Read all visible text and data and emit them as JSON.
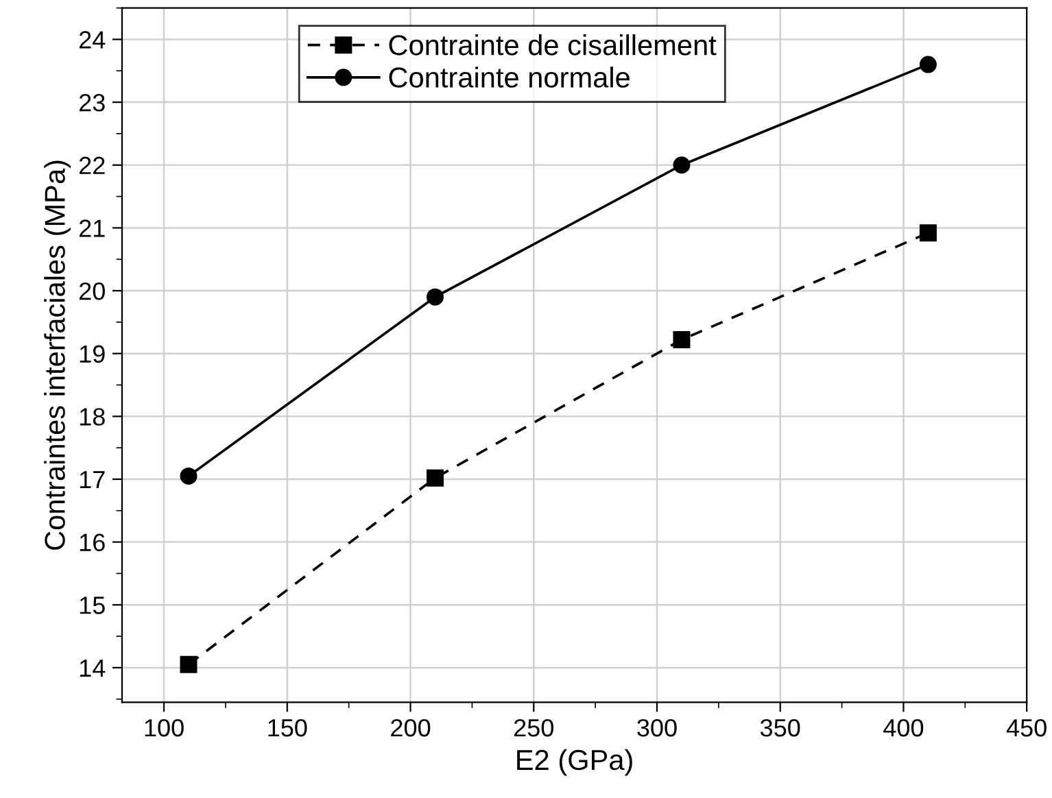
{
  "chart_data": {
    "type": "line",
    "xlabel": "E2 (GPa)",
    "ylabel": "Contraintes interfaciales (MPa)",
    "x": [
      110,
      210,
      310,
      410
    ],
    "series": [
      {
        "name": "Contrainte de cisaillement",
        "color": "#000000",
        "values": [
          14.05,
          17.02,
          19.22,
          20.92
        ],
        "marker": "square",
        "line_style": "dashed"
      },
      {
        "name": "Contrainte normale",
        "color": "#000000",
        "values": [
          17.05,
          19.9,
          22.0,
          23.6
        ],
        "marker": "circle",
        "line_style": "solid"
      }
    ],
    "xlim": [
      83,
      450
    ],
    "xticks": [
      100,
      150,
      200,
      250,
      300,
      350,
      400,
      450
    ],
    "ylim": [
      13.45,
      24.5
    ],
    "yticks": [
      14,
      15,
      16,
      17,
      18,
      19,
      20,
      21,
      22,
      23,
      24
    ],
    "grid": true,
    "legend": "top left"
  }
}
